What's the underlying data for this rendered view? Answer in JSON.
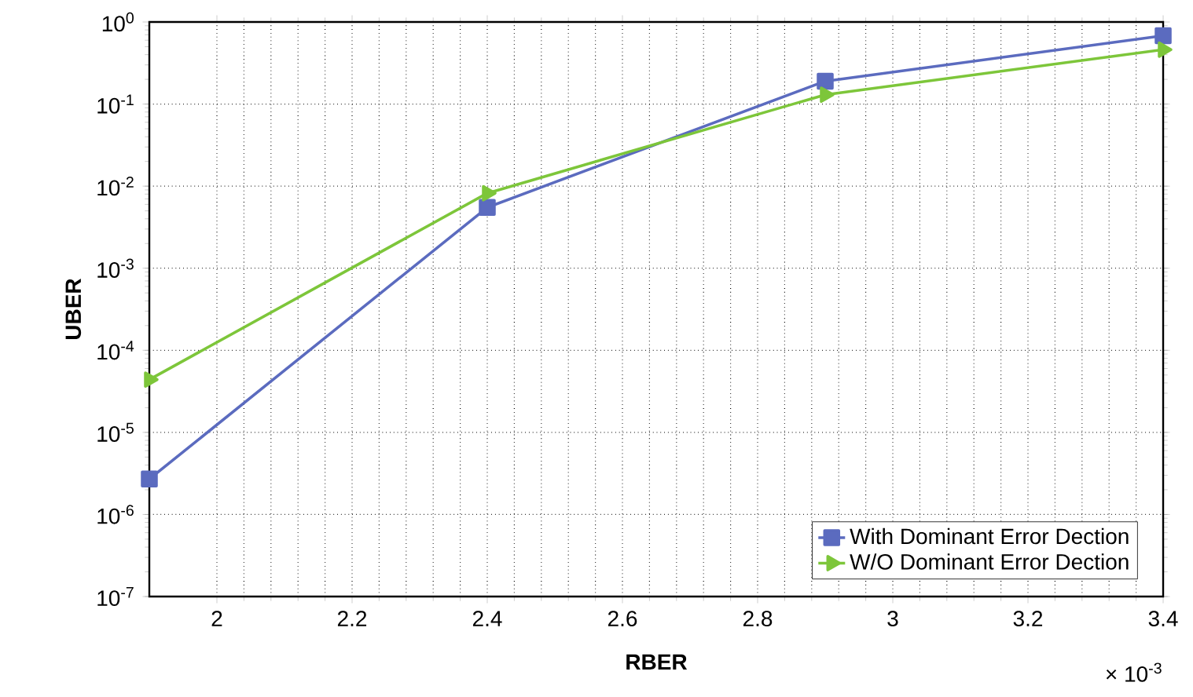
{
  "chart_data": {
    "type": "line",
    "xlabel": "RBER",
    "ylabel": "UBER",
    "log": "y",
    "grid": true,
    "legend": "bottom right",
    "line_style": "solid",
    "xlim": [
      1.9,
      3.4
    ],
    "xticks": [
      2,
      2.2,
      2.4,
      2.6,
      2.8,
      3,
      3.2,
      3.4
    ],
    "ylim": [
      1e-07,
      1
    ],
    "yticks": [
      {
        "value": 1e-07,
        "label": "10$^{-7}$"
      },
      {
        "value": 1e-06,
        "label": "10$^{-6}$"
      },
      {
        "value": 1e-05,
        "label": "10$^{-5}$"
      },
      {
        "value": 0.0001,
        "label": "10$^{-4}$"
      },
      {
        "value": 0.001,
        "label": "10$^{-3}$"
      },
      {
        "value": 0.01,
        "label": "10$^{-2}$"
      },
      {
        "value": 0.1,
        "label": "10$^{-1}$"
      },
      {
        "value": 1,
        "label": "10$^{0}$"
      }
    ],
    "annotations": [
      "× 10$^{-3}$"
    ],
    "series": [
      {
        "name": "With Dominant Error Dection",
        "color": "#5b6bbf",
        "marker": "square",
        "x": [
          1.9,
          2.4,
          2.9,
          3.4
        ],
        "values": [
          2.7e-06,
          0.0055,
          0.19,
          0.68
        ]
      },
      {
        "name": "W/O Dominant Error Dection",
        "color": "#7dc63a",
        "marker": "triangle",
        "x": [
          1.9,
          2.4,
          2.9,
          3.4
        ],
        "values": [
          4.4e-05,
          0.0082,
          0.13,
          0.46
        ]
      }
    ]
  }
}
